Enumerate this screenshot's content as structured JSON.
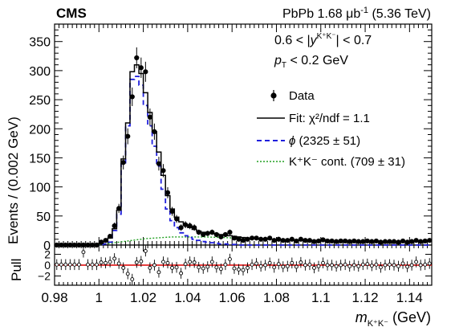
{
  "header": {
    "experiment": "CMS",
    "lumi_prefix": "PbPb 1.68 ",
    "lumi_unit": "μb",
    "lumi_exp": "-1",
    "energy": " (5.36 TeV)"
  },
  "cuts": {
    "rapidity": {
      "lo": "0.6 < |",
      "var": "y",
      "sup": "K⁺K⁻",
      "hi": "| < 0.7"
    },
    "pt": {
      "var": "p",
      "sub": "T",
      "rest": " < 0.2 GeV"
    }
  },
  "legend": {
    "data": "Data",
    "fit": "Fit: χ²/ndf = 1.1",
    "phi_sym": "ϕ",
    "phi_rest": " (2325 ± 51)",
    "kk": "K⁺K⁻ cont. (709 ± 31)"
  },
  "colors": {
    "fit": "#000000",
    "phi": "#1f1fdd",
    "kk": "#22a022",
    "pull_line": "#dd0000",
    "data": "#000000"
  },
  "chart_data": {
    "type": "histogram",
    "xlabel": {
      "main": "m",
      "sub": "K⁺K⁻",
      "unit": " (GeV)"
    },
    "ylabel": "Events / (0.002 GeV)",
    "pull_label": "Pull",
    "xlim": [
      0.98,
      1.15
    ],
    "ylim": [
      0,
      380
    ],
    "pull_ylim": [
      -3.7,
      3.7
    ],
    "x_ticks": [
      "0.98",
      "1",
      "1.02",
      "1.04",
      "1.06",
      "1.08",
      "1.1",
      "1.12",
      "1.14"
    ],
    "y_ticks": [
      "0",
      "50",
      "100",
      "150",
      "200",
      "250",
      "300",
      "350"
    ],
    "pull_ticks": [
      "−2",
      "0",
      "2"
    ],
    "bin_width": 0.002,
    "bin_centers": [
      0.981,
      0.983,
      0.985,
      0.987,
      0.989,
      0.991,
      0.993,
      0.995,
      0.997,
      0.999,
      1.001,
      1.003,
      1.005,
      1.007,
      1.009,
      1.011,
      1.013,
      1.015,
      1.017,
      1.019,
      1.021,
      1.023,
      1.025,
      1.027,
      1.029,
      1.031,
      1.033,
      1.035,
      1.037,
      1.039,
      1.041,
      1.043,
      1.045,
      1.047,
      1.049,
      1.051,
      1.053,
      1.055,
      1.057,
      1.059,
      1.061,
      1.063,
      1.065,
      1.067,
      1.069,
      1.071,
      1.073,
      1.075,
      1.077,
      1.079,
      1.081,
      1.083,
      1.085,
      1.087,
      1.089,
      1.091,
      1.093,
      1.095,
      1.097,
      1.099,
      1.101,
      1.103,
      1.105,
      1.107,
      1.109,
      1.111,
      1.113,
      1.115,
      1.117,
      1.119,
      1.121,
      1.123,
      1.125,
      1.127,
      1.129,
      1.131,
      1.133,
      1.135,
      1.137,
      1.139,
      1.141,
      1.143,
      1.145,
      1.147,
      1.149
    ],
    "data": [
      0,
      0,
      0,
      0,
      0,
      0,
      0,
      0,
      0,
      0,
      5,
      8,
      15,
      33,
      63,
      142,
      187,
      255,
      322,
      305,
      298,
      220,
      195,
      140,
      128,
      90,
      58,
      45,
      30,
      35,
      33,
      30,
      22,
      18,
      20,
      22,
      18,
      14,
      18,
      22,
      12,
      10,
      8,
      10,
      12,
      12,
      10,
      10,
      12,
      8,
      10,
      8,
      8,
      10,
      7,
      10,
      8,
      8,
      6,
      7,
      9,
      7,
      7,
      6,
      7,
      7,
      6,
      7,
      6,
      6,
      7,
      6,
      7,
      5,
      6,
      6,
      6,
      5,
      7,
      5,
      6,
      8,
      6,
      7,
      8
    ],
    "fit": [
      0,
      0,
      0,
      0,
      0,
      0,
      0,
      0,
      0,
      0,
      3,
      6,
      12,
      28,
      60,
      148,
      210,
      298,
      310,
      295,
      262,
      228,
      195,
      160,
      120,
      85,
      62,
      48,
      40,
      34,
      30,
      27,
      24,
      22,
      21,
      20,
      19,
      18,
      17,
      16,
      15,
      14,
      13,
      12,
      12,
      11,
      11,
      10,
      10,
      10,
      9,
      9,
      9,
      9,
      8,
      8,
      8,
      8,
      8,
      7,
      7,
      7,
      7,
      7,
      7,
      7,
      7,
      7,
      7,
      6,
      6,
      6,
      6,
      6,
      6,
      6,
      6,
      6,
      6,
      6,
      6,
      6,
      6,
      6,
      6
    ],
    "phi": [
      0,
      0,
      0,
      0,
      0,
      0,
      0,
      0,
      0,
      0,
      1,
      2,
      5,
      25,
      53,
      140,
      205,
      285,
      290,
      275,
      240,
      205,
      170,
      136,
      96,
      62,
      42,
      30,
      21,
      16,
      13,
      10,
      8,
      6,
      5,
      4,
      3,
      2,
      2,
      1,
      1,
      0,
      0,
      0,
      0,
      0,
      0,
      0,
      0,
      0,
      0,
      0,
      0,
      0,
      0,
      0,
      0,
      0,
      0,
      0,
      0,
      0,
      0,
      0,
      0,
      0,
      0,
      0,
      0,
      0,
      0,
      0,
      0,
      0,
      0,
      0,
      0,
      0,
      0,
      0,
      0,
      0,
      0,
      0,
      0
    ],
    "kk": [
      0,
      0,
      0,
      0,
      0,
      0,
      0,
      0,
      0,
      0,
      1,
      2,
      3,
      4,
      5,
      6,
      7,
      8,
      9,
      10,
      11,
      11.5,
      12,
      12.5,
      13,
      13.5,
      14,
      14,
      14,
      14,
      14,
      14,
      14,
      14,
      13.8,
      13.5,
      13.2,
      13,
      12.8,
      12.5,
      12.2,
      12,
      11.8,
      11.5,
      11.2,
      11,
      10.8,
      10.5,
      10.2,
      10,
      9.8,
      9.5,
      9.2,
      9,
      8.8,
      8.5,
      8.3,
      8.1,
      7.9,
      7.7,
      7.5,
      7.3,
      7.2,
      7,
      6.9,
      6.8,
      6.7,
      6.6,
      6.5,
      6.4,
      6.3,
      6.2,
      6.1,
      6,
      6,
      5.9,
      5.9,
      5.8,
      5.8,
      5.7,
      5.7,
      5.6,
      5.6,
      5.5,
      5.5
    ],
    "pull": [
      0.1,
      0.1,
      0.1,
      0.1,
      0.1,
      0.1,
      2.4,
      0.1,
      0.1,
      0.1,
      0.5,
      0.4,
      0.6,
      1.2,
      0.3,
      -0.5,
      -1.6,
      -2.6,
      0.5,
      0.7,
      2.6,
      -0.5,
      0,
      -1.3,
      0.6,
      0.4,
      -0.5,
      -0.4,
      -1.5,
      0.2,
      0.6,
      0.5,
      -0.4,
      -0.6,
      -0.3,
      0.6,
      -0.4,
      -0.7,
      0.1,
      1.1,
      -0.6,
      -0.8,
      -0.9,
      -0.5,
      0.1,
      0.3,
      -0.2,
      0,
      0.4,
      -0.4,
      0.2,
      -0.3,
      -0.2,
      0.4,
      -0.3,
      0.5,
      0,
      0.1,
      -0.5,
      -0.2,
      0.4,
      0,
      0,
      -0.2,
      0,
      0.1,
      -0.2,
      0,
      -0.2,
      0.1,
      0.2,
      -0.1,
      0.1,
      -0.4,
      0,
      0.1,
      0,
      -0.2,
      0.3,
      -0.3,
      0,
      0.6,
      0,
      0.1,
      0.3
    ]
  }
}
